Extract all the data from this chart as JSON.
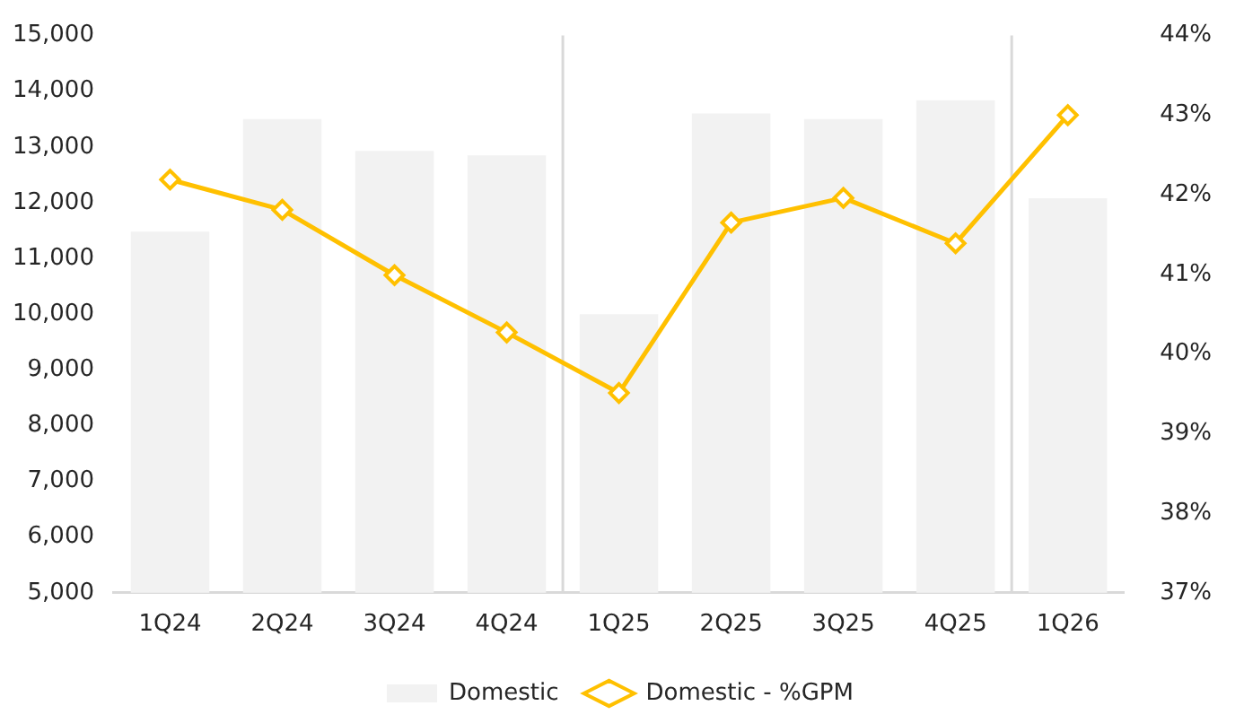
{
  "chart_data": {
    "type": "bar",
    "categories": [
      "1Q24",
      "2Q24",
      "3Q24",
      "4Q24",
      "1Q25",
      "2Q25",
      "3Q25",
      "4Q25",
      "1Q26"
    ],
    "series": [
      {
        "name": "Domestic",
        "color": "#f2f2f2",
        "values": [
          11480,
          13500,
          12930,
          12850,
          10000,
          13600,
          13500,
          13840,
          12080
        ]
      },
      {
        "name": "Domestic - %GPM",
        "type": "line",
        "axis": "y2",
        "color": "#ffc000",
        "values": [
          42.19,
          41.81,
          40.99,
          40.27,
          39.51,
          41.65,
          41.96,
          41.39,
          43.0
        ]
      }
    ],
    "ylim": [
      5000,
      15000
    ],
    "yticks": [
      {
        "value": 5000,
        "label": "5,000"
      },
      {
        "value": 6000,
        "label": "6,000"
      },
      {
        "value": 7000,
        "label": "7,000"
      },
      {
        "value": 8000,
        "label": "8,000"
      },
      {
        "value": 9000,
        "label": "9,000"
      },
      {
        "value": 10000,
        "label": "10,000"
      },
      {
        "value": 11000,
        "label": "11,000"
      },
      {
        "value": 12000,
        "label": "12,000"
      },
      {
        "value": 13000,
        "label": "13,000"
      },
      {
        "value": 14000,
        "label": "14,000"
      },
      {
        "value": 15000,
        "label": "15,000"
      }
    ],
    "y2lim": [
      37,
      44
    ],
    "y2ticks": [
      {
        "value": 37,
        "label": "37%"
      },
      {
        "value": 38,
        "label": "38%"
      },
      {
        "value": 39,
        "label": "39%"
      },
      {
        "value": 40,
        "label": "40%"
      },
      {
        "value": 41,
        "label": "41%"
      },
      {
        "value": 42,
        "label": "42%"
      },
      {
        "value": 43,
        "label": "43%"
      },
      {
        "value": 44,
        "label": "44%"
      }
    ],
    "grid": false,
    "legend": "bottom",
    "marker": "diamond",
    "line_style": "solid"
  }
}
